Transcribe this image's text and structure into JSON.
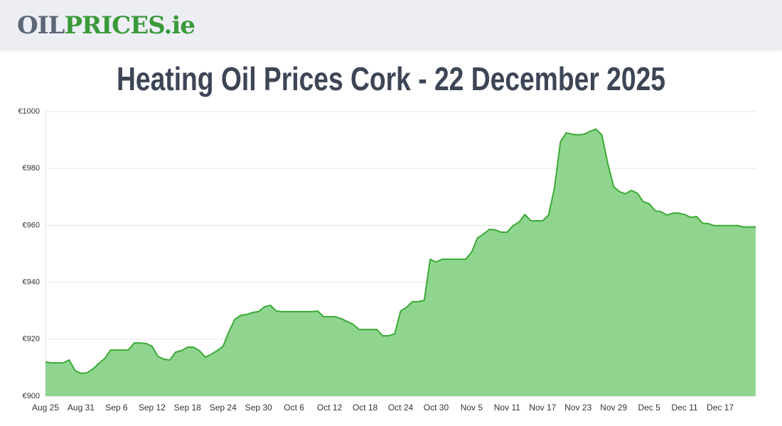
{
  "header": {
    "logo": {
      "parts": [
        "OIL",
        "PRICES",
        ".ie"
      ]
    }
  },
  "chart_data": {
    "type": "area",
    "title": "Heating Oil Prices Cork - 22 December 2025",
    "categories": [
      "Aug 25",
      null,
      null,
      null,
      null,
      null,
      "Aug 31",
      null,
      null,
      null,
      null,
      null,
      "Sep 6",
      null,
      null,
      null,
      null,
      null,
      "Sep 12",
      null,
      null,
      null,
      null,
      null,
      "Sep 18",
      null,
      null,
      null,
      null,
      null,
      "Sep 24",
      null,
      null,
      null,
      null,
      null,
      "Sep 30",
      null,
      null,
      null,
      null,
      null,
      "Oct 6",
      null,
      null,
      null,
      null,
      null,
      "Oct 12",
      null,
      null,
      null,
      null,
      null,
      "Oct 18",
      null,
      null,
      null,
      null,
      null,
      "Oct 24",
      null,
      null,
      null,
      null,
      null,
      "Oct 30",
      null,
      null,
      null,
      null,
      null,
      "Nov 5",
      null,
      null,
      null,
      null,
      null,
      "Nov 11",
      null,
      null,
      null,
      null,
      null,
      "Nov 17",
      null,
      null,
      null,
      null,
      null,
      "Nov 23",
      null,
      null,
      null,
      null,
      null,
      "Nov 29",
      null,
      null,
      null,
      null,
      null,
      "Dec 5",
      null,
      null,
      null,
      null,
      null,
      "Dec 11",
      null,
      null,
      null,
      null,
      null,
      "Dec 17",
      null,
      null,
      null,
      null,
      null,
      null
    ],
    "values": [
      912.0,
      911.7,
      911.7,
      911.7,
      912.7,
      909.0,
      908.0,
      908.2,
      909.5,
      911.5,
      913.2,
      916.2,
      916.2,
      916.2,
      916.2,
      918.7,
      918.7,
      918.5,
      917.5,
      914.0,
      913.0,
      912.7,
      915.5,
      916.0,
      917.2,
      917.2,
      916.0,
      913.7,
      914.7,
      916.0,
      917.5,
      922.7,
      927.0,
      928.4,
      928.7,
      929.4,
      929.7,
      931.4,
      931.9,
      929.9,
      929.7,
      929.7,
      929.7,
      929.7,
      929.7,
      929.7,
      929.9,
      927.9,
      927.9,
      927.9,
      927.2,
      926.2,
      925.2,
      923.4,
      923.4,
      923.4,
      923.4,
      921.2,
      921.2,
      921.9,
      929.9,
      931.2,
      933.2,
      933.2,
      933.7,
      948.1,
      947.1,
      948.1,
      948.1,
      948.1,
      948.1,
      948.1,
      950.6,
      955.6,
      956.9,
      958.6,
      958.4,
      957.6,
      957.6,
      959.9,
      961.1,
      963.8,
      961.6,
      961.6,
      961.6,
      963.6,
      973.1,
      989.3,
      992.5,
      992.0,
      991.8,
      992.0,
      993.0,
      993.8,
      991.8,
      981.8,
      973.6,
      971.8,
      971.1,
      972.3,
      971.3,
      968.3,
      967.6,
      965.1,
      964.8,
      963.6,
      964.3,
      964.3,
      963.8,
      962.8,
      963.1,
      960.8,
      960.6,
      959.9,
      959.9,
      959.9,
      959.9,
      959.9,
      959.4,
      959.4,
      959.4
    ],
    "color": "#3aaa35",
    "fill": "#90d58f",
    "ylim": [
      900,
      1000
    ],
    "yticks": [
      {
        "value": 900,
        "label": "€900"
      },
      {
        "value": 920,
        "label": "€920"
      },
      {
        "value": 940,
        "label": "€940"
      },
      {
        "value": 960,
        "label": "€960"
      },
      {
        "value": 980,
        "label": "€980"
      },
      {
        "value": 1000,
        "label": "€1000"
      }
    ],
    "grid": true
  }
}
